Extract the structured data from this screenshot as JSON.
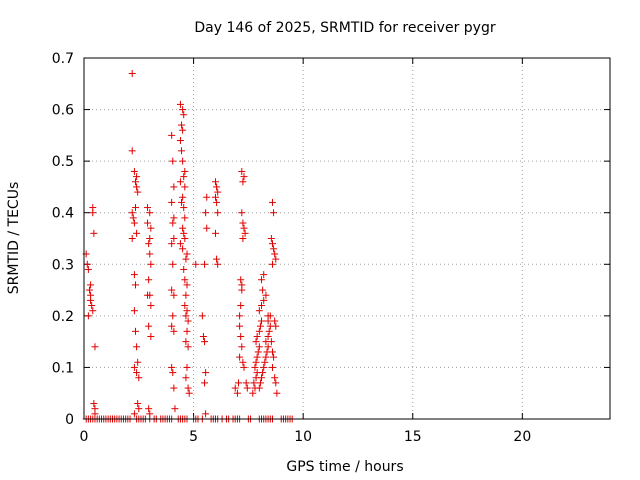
{
  "chart_data": {
    "type": "scatter",
    "title": "Day 146 of 2025, SRMTID for receiver pygr",
    "xlabel": "GPS time / hours",
    "ylabel": "SRMTID / TECUs",
    "xlim": [
      0,
      24
    ],
    "ylim": [
      0,
      0.7
    ],
    "xticks": [
      0,
      5,
      10,
      15,
      20
    ],
    "yticks": [
      0,
      0.1,
      0.2,
      0.3,
      0.4,
      0.5,
      0.6,
      0.7
    ],
    "xtick_labels": [
      "0",
      "5",
      "10",
      "15",
      "20"
    ],
    "ytick_labels": [
      "0",
      "0.1",
      "0.2",
      "0.3",
      "0.4",
      "0.5",
      "0.6",
      "0.7"
    ],
    "grid": true,
    "marker": "+",
    "color": "#e00000",
    "series": [
      {
        "points": [
          [
            0.1,
            0.0
          ],
          [
            0.2,
            0.0
          ],
          [
            0.3,
            0.0
          ],
          [
            0.4,
            0.0
          ],
          [
            0.5,
            0.0
          ],
          [
            0.6,
            0.0
          ],
          [
            0.7,
            0.0
          ],
          [
            0.8,
            0.0
          ],
          [
            0.9,
            0.0
          ],
          [
            1.0,
            0.0
          ],
          [
            1.1,
            0.0
          ],
          [
            1.2,
            0.0
          ],
          [
            1.3,
            0.0
          ],
          [
            1.4,
            0.0
          ],
          [
            1.5,
            0.0
          ],
          [
            1.6,
            0.0
          ],
          [
            1.7,
            0.0
          ],
          [
            1.8,
            0.0
          ],
          [
            1.9,
            0.0
          ],
          [
            2.0,
            0.0
          ],
          [
            2.1,
            0.0
          ],
          [
            2.4,
            0.0
          ],
          [
            2.5,
            0.0
          ],
          [
            2.6,
            0.0
          ],
          [
            2.7,
            0.0
          ],
          [
            2.8,
            0.0
          ],
          [
            3.0,
            0.0
          ],
          [
            3.2,
            0.0
          ],
          [
            3.3,
            0.0
          ],
          [
            3.5,
            0.0
          ],
          [
            3.6,
            0.0
          ],
          [
            3.7,
            0.0
          ],
          [
            3.8,
            0.0
          ],
          [
            3.9,
            0.0
          ],
          [
            4.0,
            0.0
          ],
          [
            4.3,
            0.0
          ],
          [
            4.4,
            0.0
          ],
          [
            4.5,
            0.0
          ],
          [
            4.6,
            0.0
          ],
          [
            4.7,
            0.0
          ],
          [
            5.0,
            0.0
          ],
          [
            5.1,
            0.0
          ],
          [
            5.2,
            0.0
          ],
          [
            5.4,
            0.0
          ],
          [
            5.8,
            0.0
          ],
          [
            5.9,
            0.0
          ],
          [
            6.0,
            0.0
          ],
          [
            6.1,
            0.0
          ],
          [
            6.3,
            0.0
          ],
          [
            6.5,
            0.0
          ],
          [
            6.6,
            0.0
          ],
          [
            6.8,
            0.0
          ],
          [
            6.9,
            0.0
          ],
          [
            7.0,
            0.0
          ],
          [
            7.1,
            0.0
          ],
          [
            7.5,
            0.0
          ],
          [
            7.6,
            0.0
          ],
          [
            8.0,
            0.0
          ],
          [
            8.1,
            0.0
          ],
          [
            8.2,
            0.0
          ],
          [
            8.3,
            0.0
          ],
          [
            8.4,
            0.0
          ],
          [
            8.5,
            0.0
          ],
          [
            8.6,
            0.0
          ],
          [
            9.0,
            0.0
          ],
          [
            9.1,
            0.0
          ],
          [
            9.2,
            0.0
          ],
          [
            9.3,
            0.0
          ],
          [
            9.4,
            0.0
          ],
          [
            9.5,
            0.0
          ],
          [
            0.1,
            0.32
          ],
          [
            0.15,
            0.3
          ],
          [
            0.2,
            0.29
          ],
          [
            0.25,
            0.25
          ],
          [
            0.3,
            0.24
          ],
          [
            0.3,
            0.23
          ],
          [
            0.35,
            0.22
          ],
          [
            0.2,
            0.2
          ],
          [
            0.4,
            0.21
          ],
          [
            0.4,
            0.41
          ],
          [
            0.4,
            0.4
          ],
          [
            0.45,
            0.36
          ],
          [
            0.5,
            0.14
          ],
          [
            0.45,
            0.03
          ],
          [
            0.5,
            0.02
          ],
          [
            0.5,
            0.01
          ],
          [
            0.3,
            0.26
          ],
          [
            2.2,
            0.67
          ],
          [
            2.2,
            0.52
          ],
          [
            2.3,
            0.48
          ],
          [
            2.35,
            0.46
          ],
          [
            2.4,
            0.47
          ],
          [
            2.4,
            0.45
          ],
          [
            2.45,
            0.44
          ],
          [
            2.2,
            0.4
          ],
          [
            2.25,
            0.39
          ],
          [
            2.3,
            0.38
          ],
          [
            2.35,
            0.41
          ],
          [
            2.4,
            0.36
          ],
          [
            2.2,
            0.35
          ],
          [
            2.3,
            0.28
          ],
          [
            2.35,
            0.26
          ],
          [
            2.3,
            0.21
          ],
          [
            2.35,
            0.17
          ],
          [
            2.4,
            0.14
          ],
          [
            2.3,
            0.1
          ],
          [
            2.45,
            0.11
          ],
          [
            2.4,
            0.09
          ],
          [
            2.5,
            0.08
          ],
          [
            2.45,
            0.03
          ],
          [
            2.5,
            0.02
          ],
          [
            2.3,
            0.01
          ],
          [
            2.9,
            0.41
          ],
          [
            3.0,
            0.4
          ],
          [
            2.9,
            0.38
          ],
          [
            3.05,
            0.37
          ],
          [
            3.0,
            0.35
          ],
          [
            2.95,
            0.34
          ],
          [
            3.0,
            0.32
          ],
          [
            3.05,
            0.3
          ],
          [
            2.95,
            0.27
          ],
          [
            3.0,
            0.24
          ],
          [
            2.9,
            0.24
          ],
          [
            3.05,
            0.22
          ],
          [
            2.95,
            0.18
          ],
          [
            3.05,
            0.16
          ],
          [
            2.95,
            0.02
          ],
          [
            3.0,
            0.01
          ],
          [
            4.0,
            0.55
          ],
          [
            4.05,
            0.5
          ],
          [
            4.1,
            0.45
          ],
          [
            4.0,
            0.42
          ],
          [
            4.1,
            0.39
          ],
          [
            4.05,
            0.38
          ],
          [
            4.1,
            0.35
          ],
          [
            4.0,
            0.34
          ],
          [
            4.05,
            0.3
          ],
          [
            4.0,
            0.25
          ],
          [
            4.1,
            0.24
          ],
          [
            4.05,
            0.2
          ],
          [
            4.0,
            0.18
          ],
          [
            4.1,
            0.17
          ],
          [
            4.0,
            0.1
          ],
          [
            4.05,
            0.09
          ],
          [
            4.1,
            0.06
          ],
          [
            4.15,
            0.02
          ],
          [
            4.4,
            0.61
          ],
          [
            4.5,
            0.6
          ],
          [
            4.55,
            0.59
          ],
          [
            4.45,
            0.57
          ],
          [
            4.5,
            0.56
          ],
          [
            4.4,
            0.54
          ],
          [
            4.45,
            0.52
          ],
          [
            4.5,
            0.5
          ],
          [
            4.6,
            0.48
          ],
          [
            4.55,
            0.47
          ],
          [
            4.4,
            0.46
          ],
          [
            4.6,
            0.45
          ],
          [
            4.5,
            0.43
          ],
          [
            4.45,
            0.42
          ],
          [
            4.55,
            0.41
          ],
          [
            4.6,
            0.39
          ],
          [
            4.5,
            0.37
          ],
          [
            4.55,
            0.36
          ],
          [
            4.6,
            0.35
          ],
          [
            4.4,
            0.34
          ],
          [
            4.5,
            0.33
          ],
          [
            4.7,
            0.32
          ],
          [
            4.65,
            0.31
          ],
          [
            4.55,
            0.29
          ],
          [
            4.6,
            0.27
          ],
          [
            4.7,
            0.26
          ],
          [
            4.65,
            0.24
          ],
          [
            4.6,
            0.22
          ],
          [
            4.7,
            0.21
          ],
          [
            4.65,
            0.2
          ],
          [
            4.75,
            0.19
          ],
          [
            4.7,
            0.17
          ],
          [
            4.65,
            0.15
          ],
          [
            4.75,
            0.14
          ],
          [
            4.7,
            0.1
          ],
          [
            4.65,
            0.08
          ],
          [
            4.75,
            0.06
          ],
          [
            4.8,
            0.05
          ],
          [
            5.1,
            0.3
          ],
          [
            5.4,
            0.2
          ],
          [
            5.6,
            0.43
          ],
          [
            5.55,
            0.4
          ],
          [
            5.6,
            0.37
          ],
          [
            5.5,
            0.3
          ],
          [
            5.45,
            0.16
          ],
          [
            5.5,
            0.15
          ],
          [
            5.55,
            0.09
          ],
          [
            5.5,
            0.07
          ],
          [
            5.55,
            0.01
          ],
          [
            6.0,
            0.46
          ],
          [
            6.05,
            0.45
          ],
          [
            6.1,
            0.44
          ],
          [
            6.0,
            0.43
          ],
          [
            6.05,
            0.42
          ],
          [
            6.1,
            0.4
          ],
          [
            6.0,
            0.36
          ],
          [
            6.05,
            0.31
          ],
          [
            6.1,
            0.3
          ],
          [
            6.9,
            0.06
          ],
          [
            7.0,
            0.05
          ],
          [
            7.05,
            0.07
          ],
          [
            7.1,
            0.2
          ],
          [
            7.15,
            0.22
          ],
          [
            7.2,
            0.25
          ],
          [
            7.1,
            0.18
          ],
          [
            7.15,
            0.16
          ],
          [
            7.2,
            0.14
          ],
          [
            7.1,
            0.12
          ],
          [
            7.25,
            0.11
          ],
          [
            7.3,
            0.1
          ],
          [
            7.2,
            0.26
          ],
          [
            7.15,
            0.27
          ],
          [
            7.2,
            0.48
          ],
          [
            7.3,
            0.47
          ],
          [
            7.25,
            0.46
          ],
          [
            7.2,
            0.4
          ],
          [
            7.25,
            0.38
          ],
          [
            7.3,
            0.37
          ],
          [
            7.35,
            0.36
          ],
          [
            7.25,
            0.35
          ],
          [
            7.4,
            0.07
          ],
          [
            7.45,
            0.06
          ],
          [
            7.7,
            0.05
          ],
          [
            7.8,
            0.06
          ],
          [
            7.75,
            0.07
          ],
          [
            7.85,
            0.08
          ],
          [
            7.9,
            0.09
          ],
          [
            7.8,
            0.1
          ],
          [
            7.85,
            0.11
          ],
          [
            7.9,
            0.12
          ],
          [
            7.95,
            0.13
          ],
          [
            8.0,
            0.14
          ],
          [
            7.85,
            0.15
          ],
          [
            7.9,
            0.16
          ],
          [
            8.0,
            0.17
          ],
          [
            8.05,
            0.18
          ],
          [
            8.1,
            0.19
          ],
          [
            8.0,
            0.21
          ],
          [
            8.1,
            0.22
          ],
          [
            8.15,
            0.25
          ],
          [
            8.1,
            0.27
          ],
          [
            8.2,
            0.28
          ],
          [
            8.0,
            0.06
          ],
          [
            8.05,
            0.07
          ],
          [
            8.1,
            0.08
          ],
          [
            8.15,
            0.09
          ],
          [
            8.2,
            0.1
          ],
          [
            8.25,
            0.11
          ],
          [
            8.3,
            0.12
          ],
          [
            8.35,
            0.13
          ],
          [
            8.4,
            0.14
          ],
          [
            8.3,
            0.15
          ],
          [
            8.4,
            0.16
          ],
          [
            8.45,
            0.17
          ],
          [
            8.5,
            0.18
          ],
          [
            8.4,
            0.19
          ],
          [
            8.5,
            0.2
          ],
          [
            8.55,
            0.15
          ],
          [
            8.6,
            0.13
          ],
          [
            8.65,
            0.12
          ],
          [
            8.7,
            0.19
          ],
          [
            8.75,
            0.18
          ],
          [
            8.6,
            0.1
          ],
          [
            8.7,
            0.08
          ],
          [
            8.75,
            0.07
          ],
          [
            8.8,
            0.05
          ],
          [
            8.6,
            0.42
          ],
          [
            8.65,
            0.4
          ],
          [
            8.55,
            0.35
          ],
          [
            8.6,
            0.34
          ],
          [
            8.65,
            0.33
          ],
          [
            8.7,
            0.32
          ],
          [
            8.75,
            0.31
          ],
          [
            8.6,
            0.3
          ],
          [
            8.2,
            0.23
          ],
          [
            8.3,
            0.24
          ],
          [
            8.4,
            0.2
          ]
        ]
      }
    ]
  }
}
